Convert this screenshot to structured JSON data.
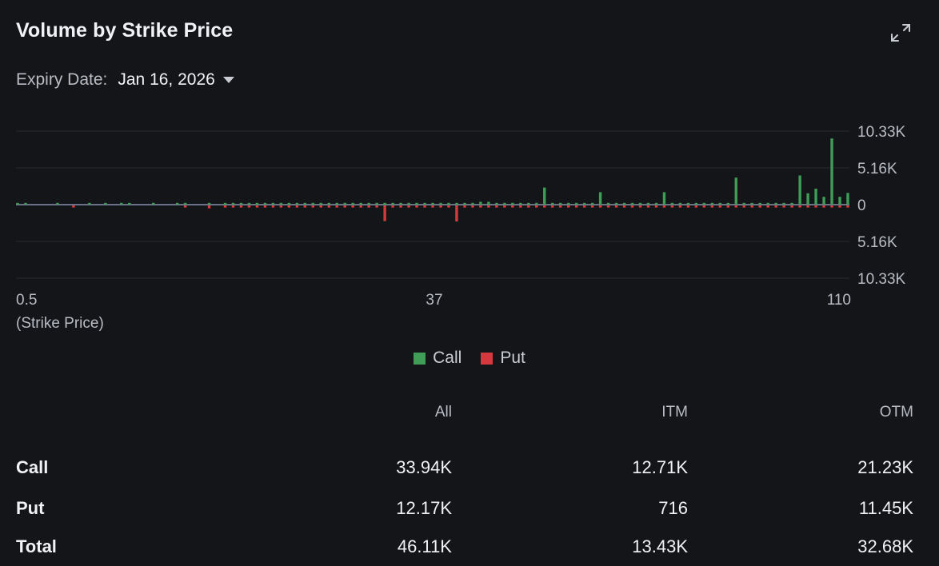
{
  "header": {
    "title": "Volume by Strike Price"
  },
  "expiry": {
    "label": "Expiry Date:",
    "value": "Jan 16, 2026"
  },
  "colors": {
    "call": "#3f9d57",
    "put": "#d6383f",
    "grid": "#2a2c31",
    "zero": "#8a8fa8"
  },
  "chart_data": {
    "type": "bar",
    "title": "Volume by Strike Price",
    "xlabel": "(Strike Price)",
    "ylabel": "",
    "x_tick_labels": [
      "0.5",
      "37",
      "110"
    ],
    "y_tick_labels": [
      "10.33K",
      "5.16K",
      "0",
      "5.16K",
      "10.33K"
    ],
    "ylim": [
      -10330,
      10330
    ],
    "grid": true,
    "legend": {
      "position": "bottom-center",
      "entries": [
        "Call",
        "Put"
      ]
    },
    "series": [
      {
        "name": "Call",
        "values": [
          250,
          250,
          0,
          0,
          0,
          250,
          0,
          0,
          0,
          250,
          0,
          250,
          0,
          250,
          250,
          0,
          0,
          250,
          0,
          0,
          250,
          250,
          0,
          0,
          250,
          0,
          250,
          250,
          250,
          250,
          250,
          250,
          250,
          250,
          250,
          250,
          250,
          250,
          250,
          250,
          250,
          250,
          250,
          250,
          250,
          250,
          250,
          250,
          250,
          250,
          250,
          250,
          250,
          250,
          250,
          250,
          250,
          250,
          400,
          400,
          250,
          250,
          250,
          250,
          250,
          250,
          2400,
          250,
          250,
          250,
          250,
          250,
          250,
          1750,
          250,
          250,
          250,
          250,
          250,
          250,
          250,
          1750,
          250,
          250,
          250,
          250,
          250,
          250,
          250,
          250,
          3800,
          250,
          250,
          250,
          250,
          250,
          250,
          250,
          4100,
          1600,
          2250,
          1100,
          9300,
          1100,
          1650
        ]
      },
      {
        "name": "Put",
        "values": [
          0,
          0,
          0,
          0,
          0,
          0,
          0,
          -300,
          0,
          0,
          0,
          0,
          0,
          0,
          0,
          0,
          0,
          0,
          0,
          0,
          0,
          -300,
          0,
          0,
          -400,
          0,
          -300,
          -300,
          -300,
          -300,
          -300,
          -300,
          -300,
          -300,
          -300,
          -300,
          -300,
          -300,
          -300,
          -300,
          -300,
          -300,
          -300,
          -300,
          -300,
          -300,
          -2200,
          -300,
          -300,
          -300,
          -300,
          -300,
          -300,
          -300,
          -300,
          -2250,
          -300,
          -300,
          -300,
          -300,
          -300,
          -300,
          -300,
          -300,
          -300,
          -300,
          -300,
          -300,
          -300,
          -300,
          -300,
          -300,
          -300,
          -300,
          -300,
          -300,
          -300,
          -300,
          -300,
          -300,
          -300,
          -300,
          -300,
          -300,
          -300,
          -300,
          -300,
          -300,
          -300,
          -300,
          -300,
          -300,
          -300,
          -300,
          -300,
          -300,
          -300,
          -300,
          -300,
          -300,
          -300,
          -300,
          -300,
          -300,
          -300
        ]
      }
    ]
  },
  "legend": {
    "call_label": "Call",
    "put_label": "Put"
  },
  "summary": {
    "columns": [
      "All",
      "ITM",
      "OTM"
    ],
    "rows": [
      {
        "label": "Call",
        "all": "33.94K",
        "itm": "12.71K",
        "otm": "21.23K"
      },
      {
        "label": "Put",
        "all": "12.17K",
        "itm": "716",
        "otm": "11.45K"
      },
      {
        "label": "Total",
        "all": "46.11K",
        "itm": "13.43K",
        "otm": "32.68K"
      }
    ]
  }
}
